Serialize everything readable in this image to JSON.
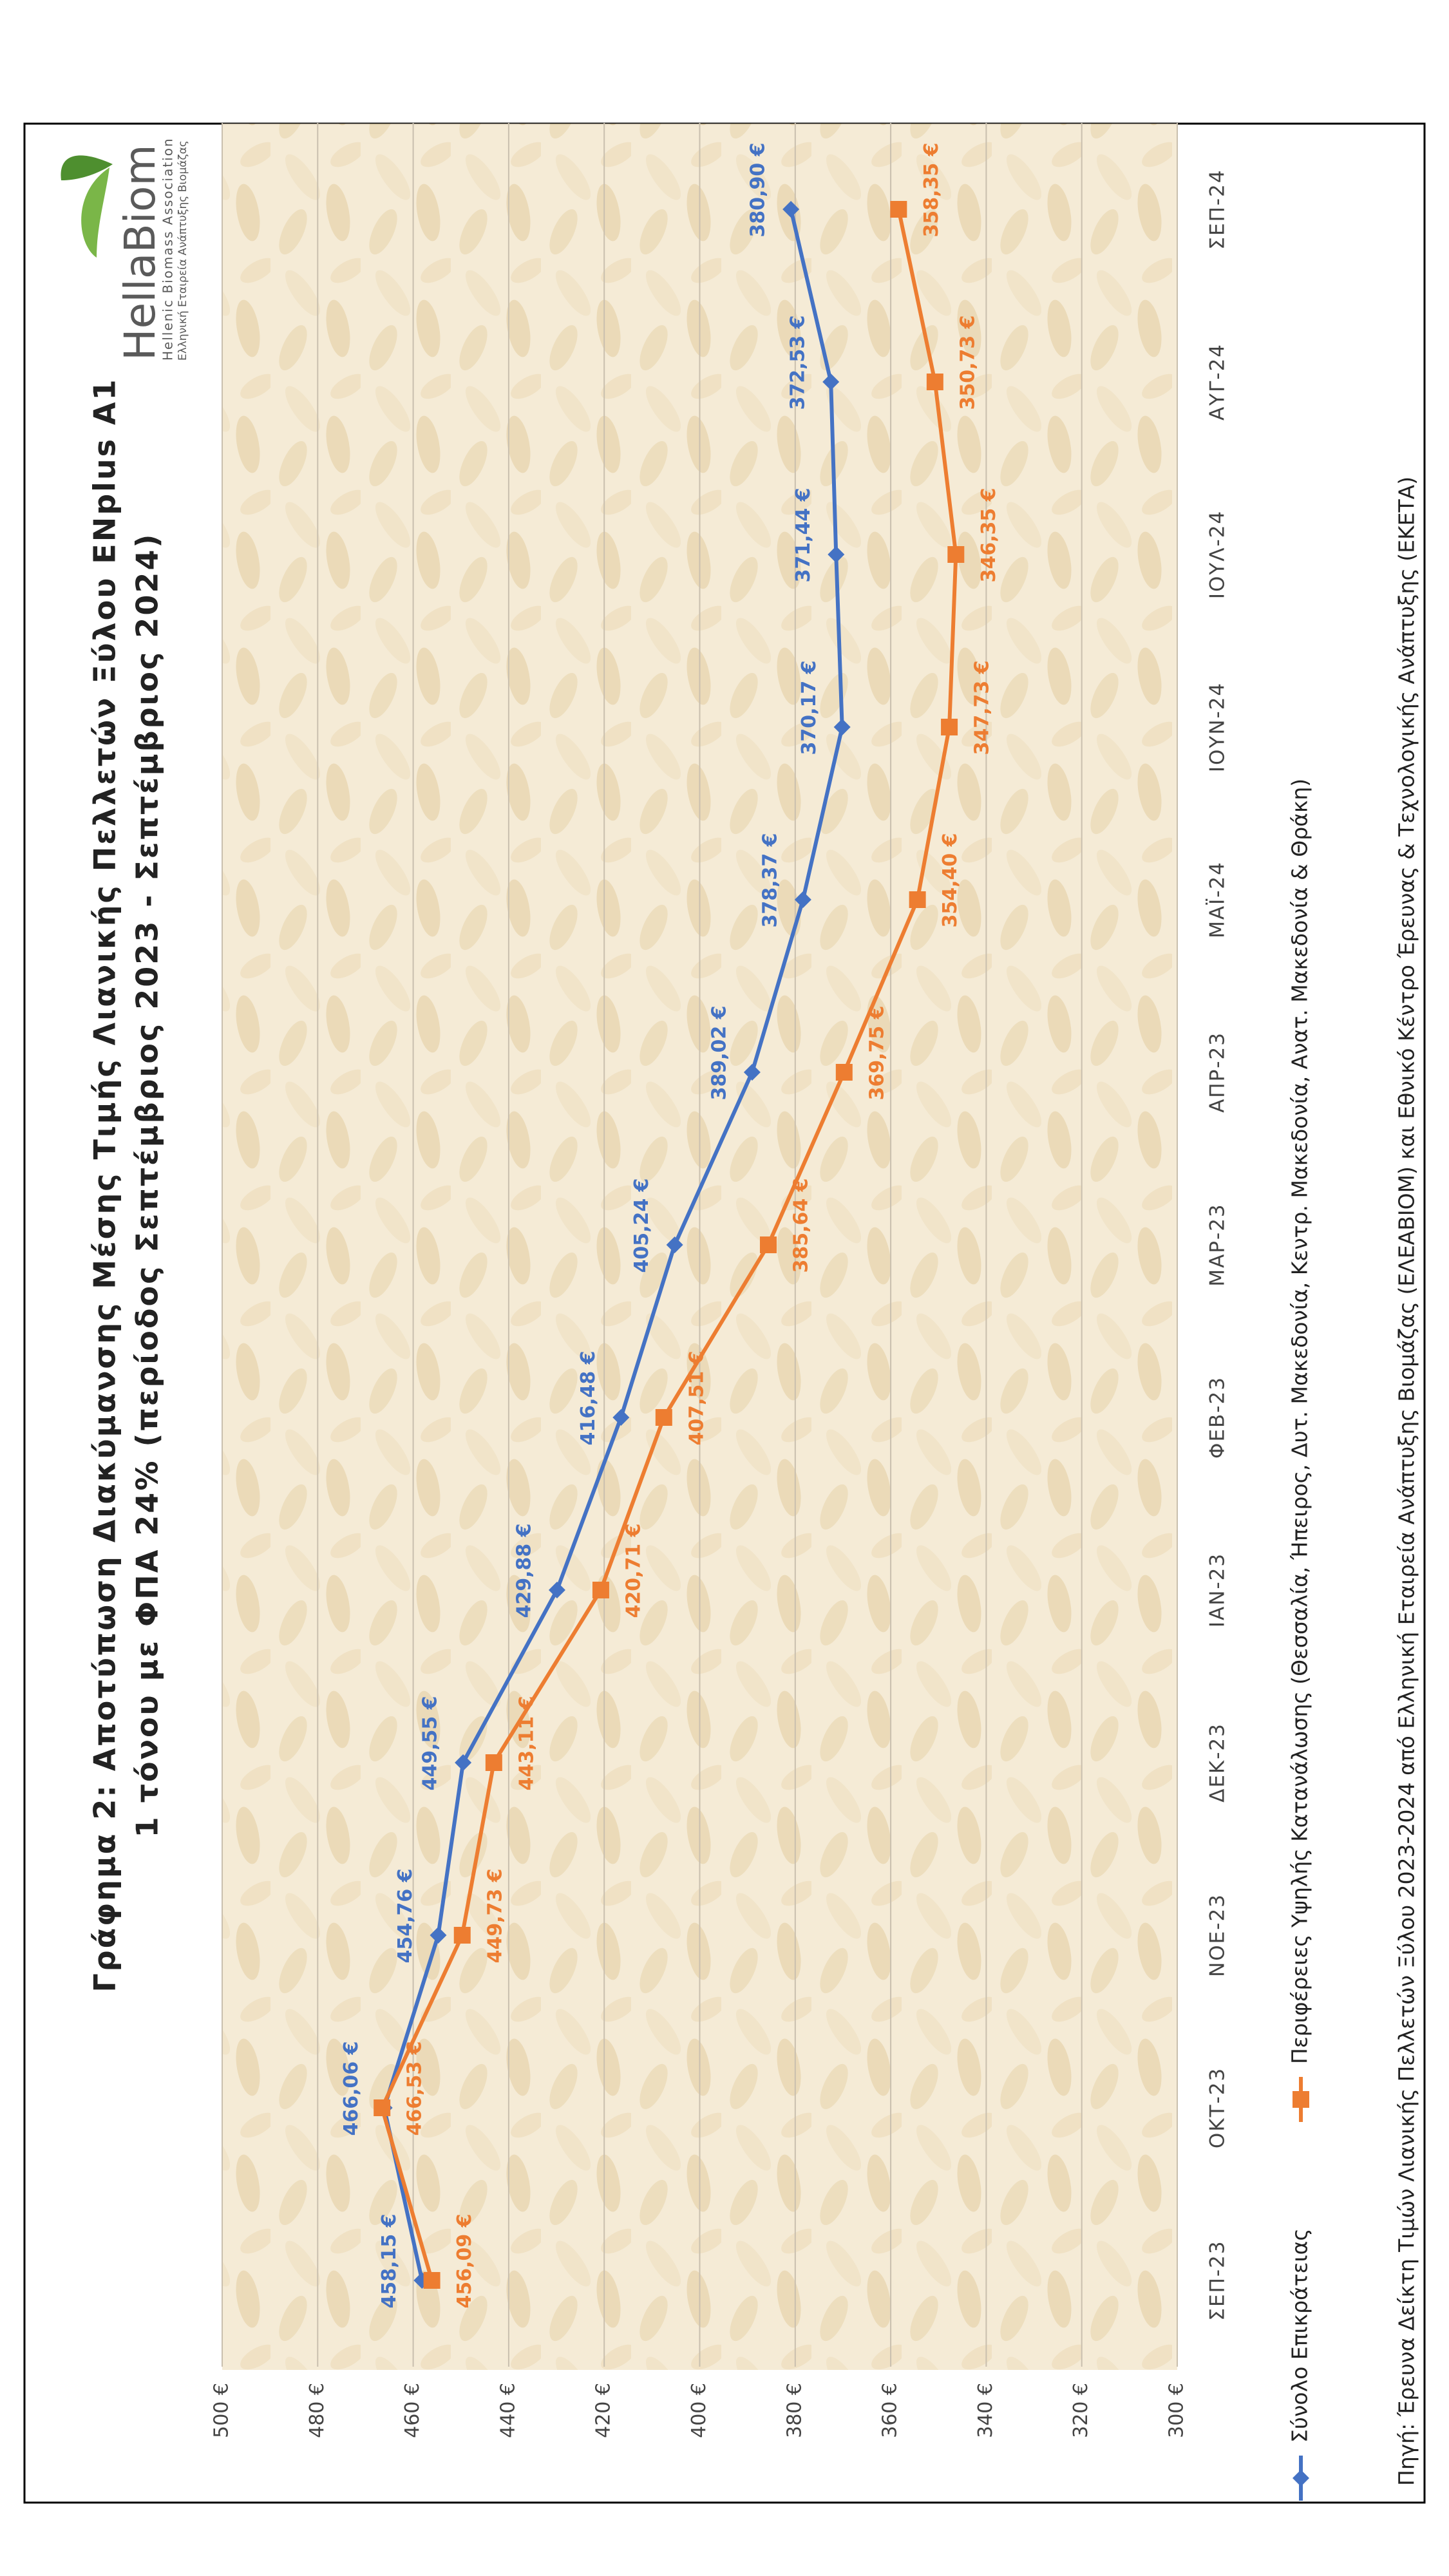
{
  "logo": {
    "name": "HellaBiom",
    "line1": "Hellenic Biomass Association",
    "line2": "Ελληνική Εταιρεία Ανάπτυξης Βιομάζας"
  },
  "chart_data": {
    "type": "line",
    "title": "Γράφημα 2: Αποτύπωση Διακύμανσης Μέσης Τιμής Λιανικής Πελλετών Ξύλου ENplus A1",
    "subtitle": "1 τόνου με ΦΠΑ 24% (περίοδος Σεπτέμβριος 2023 - Σεπτέμβριος 2024)",
    "source": "Πηγή: Έρευνα Δείκτη Τιμών Λιανικής Πελλετών Ξύλου 2023-2024 από Ελληνική Εταιρεία Ανάπτυξης Βιομάζας (ΕΛΕΑΒΙΟΜ) και Εθνικό Κέντρο Έρευνας & Τεχνολογικής Ανάπτυξης (ΕΚΕΤΑ)",
    "categories": [
      "ΣΕΠ-23",
      "ΟΚΤ-23",
      "ΝΟΕ-23",
      "ΔΕΚ-23",
      "ΙΑΝ-23",
      "ΦΕΒ-23",
      "ΜΑΡ-23",
      "ΑΠΡ-23",
      "ΜΑΪ-24",
      "ΙΟΥΝ-24",
      "ΙΟΥΛ-24",
      "ΑΥΓ-24",
      "ΣΕΠ-24"
    ],
    "series": [
      {
        "name": "Σύνολο Επικράτειας",
        "color": "#4472c4",
        "marker": "diamond",
        "values": [
          458.15,
          466.06,
          454.76,
          449.55,
          429.88,
          416.48,
          405.24,
          389.02,
          378.37,
          370.17,
          371.44,
          372.53,
          380.9
        ],
        "value_labels": [
          "458,15 €",
          "466,06 €",
          "454,76 €",
          "449,55 €",
          "429,88 €",
          "416,48 €",
          "405,24 €",
          "389,02 €",
          "378,37 €",
          "370,17 €",
          "371,44 €",
          "372,53 €",
          "380,90 €"
        ]
      },
      {
        "name": "Περιφέρειες Υψηλής Κατανάλωσης (Θεσσαλία, Ήπειρος, Δυτ. Μακεδονία, Κεντρ. Μακεδονία, Ανατ. Μακεδονία & Θράκη)",
        "color": "#ed7d31",
        "marker": "square",
        "values": [
          456.09,
          466.53,
          449.73,
          443.11,
          420.71,
          407.51,
          385.64,
          369.75,
          354.4,
          347.73,
          346.35,
          350.73,
          358.35
        ],
        "value_labels": [
          "456,09 €",
          "466,53 €",
          "449,73 €",
          "443,11 €",
          "420,71 €",
          "407,51 €",
          "385,64 €",
          "369,75 €",
          "354,40 €",
          "347,73 €",
          "346,35 €",
          "350,73 €",
          "358,35 €"
        ]
      }
    ],
    "ylim": [
      300,
      500
    ],
    "yticks": [
      {
        "value": 300,
        "label": "300 €"
      },
      {
        "value": 320,
        "label": "320 €"
      },
      {
        "value": 340,
        "label": "340 €"
      },
      {
        "value": 360,
        "label": "360 €"
      },
      {
        "value": 380,
        "label": "380 €"
      },
      {
        "value": 400,
        "label": "400 €"
      },
      {
        "value": 420,
        "label": "420 €"
      },
      {
        "value": 440,
        "label": "440 €"
      },
      {
        "value": 460,
        "label": "460 €"
      },
      {
        "value": 480,
        "label": "480 €"
      },
      {
        "value": 500,
        "label": "500 €"
      }
    ],
    "grid": true,
    "legend": "bottom"
  }
}
